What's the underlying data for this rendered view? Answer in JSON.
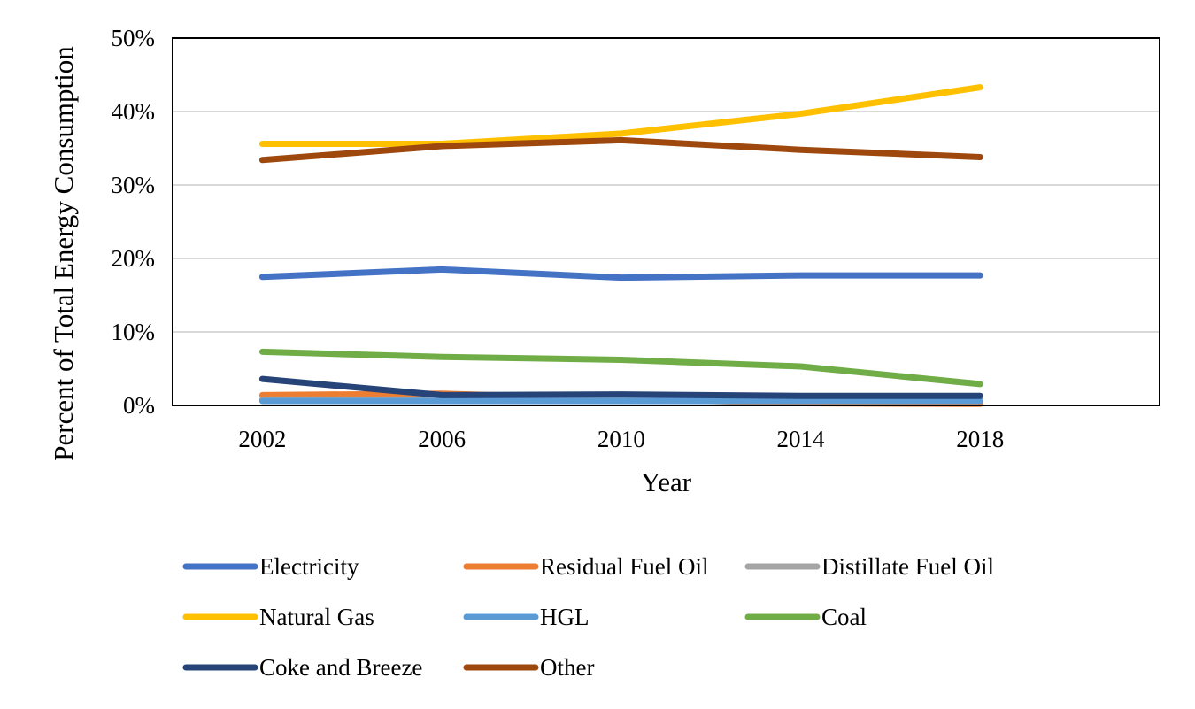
{
  "chart_data": {
    "type": "line",
    "title": "",
    "xlabel": "Year",
    "ylabel": "Percent of Total Energy Consumption",
    "categories": [
      "2002",
      "2006",
      "2010",
      "2014",
      "2018"
    ],
    "ylim": [
      0,
      50
    ],
    "yticks": [
      0,
      10,
      20,
      30,
      40,
      50
    ],
    "ytick_labels": [
      "0%",
      "10%",
      "20%",
      "30%",
      "40%",
      "50%"
    ],
    "grid": true,
    "legend_position": "bottom",
    "series": [
      {
        "name": "Electricity",
        "color": "#4472C4",
        "values": [
          17.5,
          18.5,
          17.4,
          17.7,
          17.7
        ]
      },
      {
        "name": "Residual Fuel Oil",
        "color": "#ED7D31",
        "values": [
          1.4,
          1.6,
          0.9,
          0.3,
          0.2
        ]
      },
      {
        "name": "Distillate Fuel Oil",
        "color": "#A5A5A5",
        "values": [
          0.8,
          0.8,
          0.7,
          0.7,
          0.7
        ]
      },
      {
        "name": "Natural Gas",
        "color": "#FFC000",
        "values": [
          35.6,
          35.6,
          37.0,
          39.7,
          43.3
        ]
      },
      {
        "name": "HGL",
        "color": "#5B9BD5",
        "values": [
          0.6,
          0.6,
          0.6,
          0.6,
          0.6
        ]
      },
      {
        "name": "Coal",
        "color": "#70AD47",
        "values": [
          7.3,
          6.6,
          6.2,
          5.3,
          2.9
        ]
      },
      {
        "name": "Coke and Breeze",
        "color": "#264478",
        "values": [
          3.6,
          1.4,
          1.5,
          1.3,
          1.3
        ]
      },
      {
        "name": "Other",
        "color": "#9E480E",
        "values": [
          33.4,
          35.3,
          36.1,
          34.8,
          33.8
        ]
      }
    ]
  }
}
